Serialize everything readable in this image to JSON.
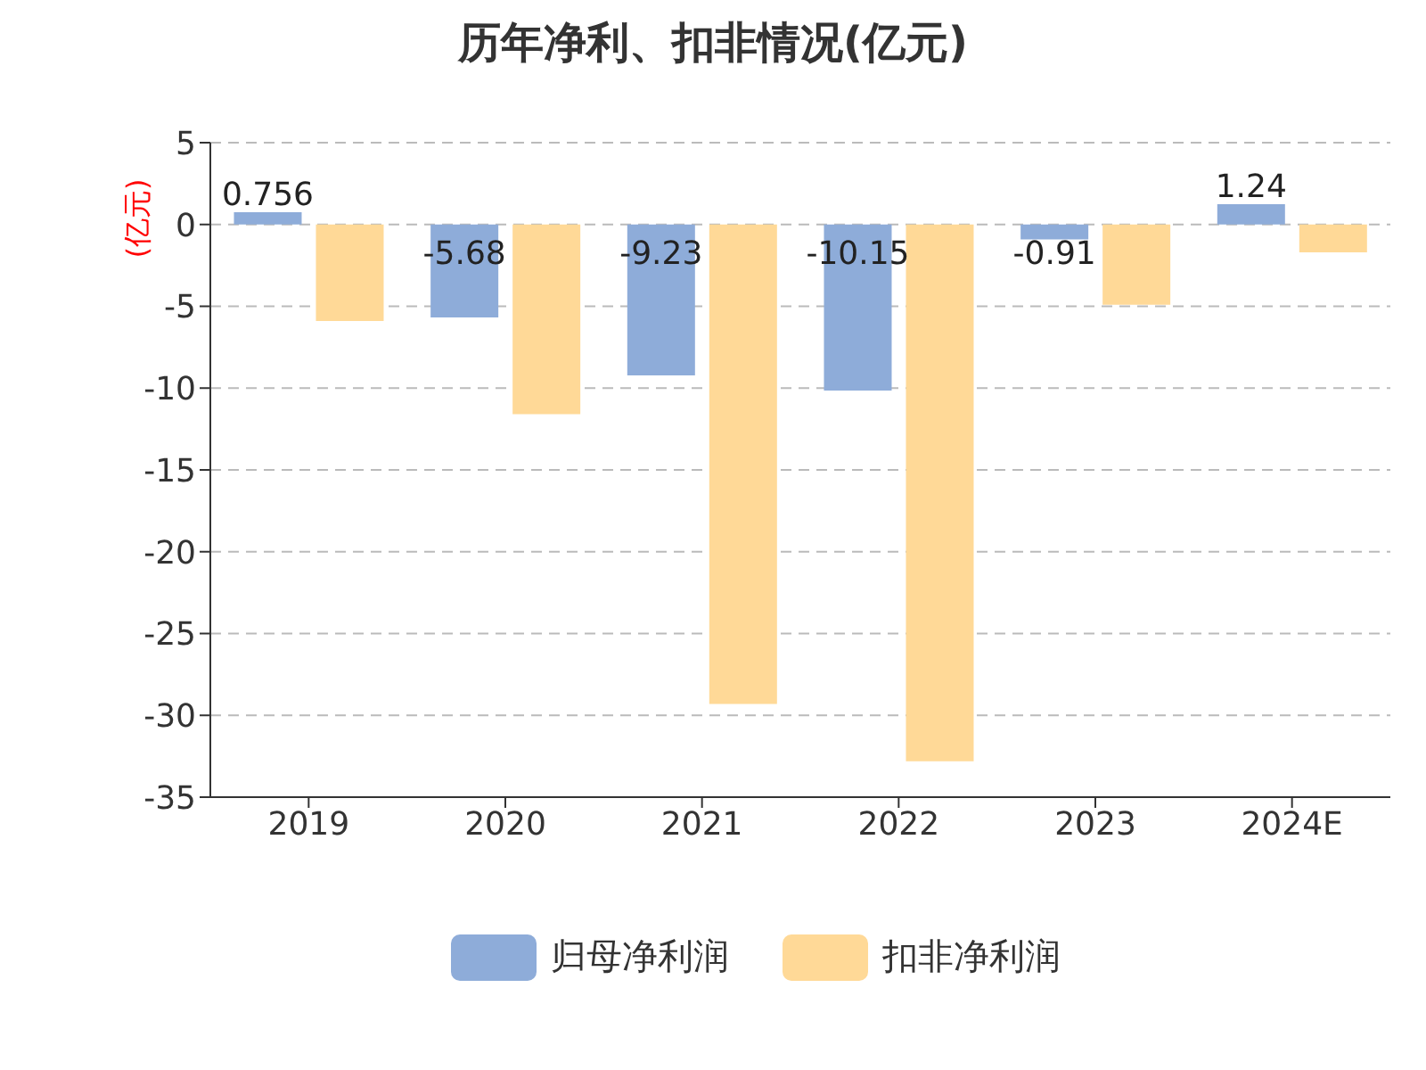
{
  "chart_data": {
    "type": "bar",
    "title": "历年净利、扣非情况(亿元)",
    "ylabel": "(亿元)",
    "categories": [
      "2019",
      "2020",
      "2021",
      "2022",
      "2023",
      "2024E"
    ],
    "series": [
      {
        "name": "归母净利润",
        "color": "#8eacd9",
        "values": [
          0.756,
          -5.68,
          -9.23,
          -10.15,
          -0.91,
          1.24
        ],
        "value_labels": [
          "0.756",
          "-5.68",
          "-9.23",
          "-10.15",
          "-0.91",
          "1.24"
        ]
      },
      {
        "name": "扣非净利润",
        "color": "#ffd997",
        "values": [
          -5.9,
          -11.6,
          -29.3,
          -32.8,
          -4.9,
          -1.7
        ]
      }
    ],
    "ylim": [
      -35,
      5
    ],
    "yticks": [
      -35,
      -30,
      -25,
      -20,
      -15,
      -10,
      -5,
      0,
      5
    ],
    "grid": "y",
    "legend": "bottom"
  }
}
